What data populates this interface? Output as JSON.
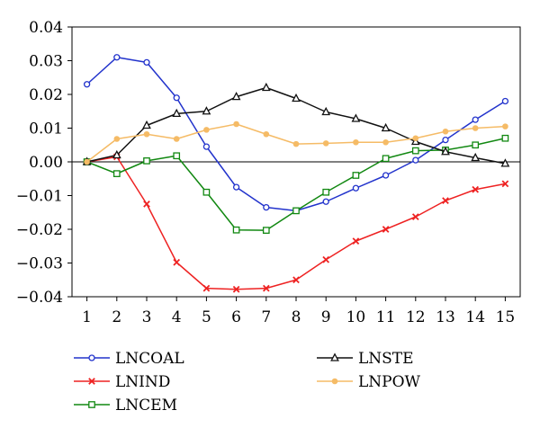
{
  "chart_data": {
    "type": "line",
    "title": "",
    "xlabel": "",
    "ylabel": "",
    "x": [
      1,
      2,
      3,
      4,
      5,
      6,
      7,
      8,
      9,
      10,
      11,
      12,
      13,
      14,
      15
    ],
    "xlim": [
      0.5,
      15.5
    ],
    "ylim": [
      -0.04,
      0.04
    ],
    "yticks": [
      "0.04",
      "0.03",
      "0.02",
      "0.01",
      "0.00",
      "−0.01",
      "−0.02",
      "−0.03",
      "−0.04"
    ],
    "ytick_values": [
      0.04,
      0.03,
      0.02,
      0.01,
      0.0,
      -0.01,
      -0.02,
      -0.03,
      -0.04
    ],
    "xticks": [
      "1",
      "2",
      "3",
      "4",
      "5",
      "6",
      "7",
      "8",
      "9",
      "10",
      "11",
      "12",
      "13",
      "14",
      "15"
    ],
    "zero_line": true,
    "grid": false,
    "legend_placement": "bottom",
    "series": [
      {
        "name": "LNCOAL",
        "color": "#2233cc",
        "marker": "circle",
        "values": [
          0.023,
          0.031,
          0.0295,
          0.019,
          0.0045,
          -0.0075,
          -0.0135,
          -0.0145,
          -0.0118,
          -0.0078,
          -0.004,
          0.0005,
          0.0065,
          0.0125,
          0.018
        ]
      },
      {
        "name": "LNIND",
        "color": "#ee2222",
        "marker": "x",
        "values": [
          0.0,
          0.0015,
          -0.0125,
          -0.0298,
          -0.0375,
          -0.0378,
          -0.0375,
          -0.035,
          -0.029,
          -0.0235,
          -0.02,
          -0.0163,
          -0.0115,
          -0.0082,
          -0.0065
        ]
      },
      {
        "name": "LNCEM",
        "color": "#118811",
        "marker": "square",
        "values": [
          0.0,
          -0.0035,
          0.0003,
          0.0018,
          -0.009,
          -0.0202,
          -0.0203,
          -0.0145,
          -0.009,
          -0.004,
          0.001,
          0.0033,
          0.0035,
          0.005,
          0.007
        ]
      },
      {
        "name": "LNSTE",
        "color": "#111111",
        "marker": "triangle",
        "values": [
          0.0,
          0.002,
          0.0108,
          0.0143,
          0.015,
          0.0193,
          0.022,
          0.0188,
          0.0148,
          0.0128,
          0.01,
          0.006,
          0.003,
          0.0012,
          -0.0005
        ]
      },
      {
        "name": "LNPOW",
        "color": "#f5bb66",
        "marker": "dot",
        "values": [
          0.0,
          0.0068,
          0.0082,
          0.0068,
          0.0095,
          0.0112,
          0.0082,
          0.0053,
          0.0055,
          0.0058,
          0.0058,
          0.007,
          0.009,
          0.01,
          0.0105
        ]
      }
    ],
    "legend": {
      "columns": [
        [
          "LNCOAL",
          "LNIND",
          "LNCEM"
        ],
        [
          "LNSTE",
          "LNPOW"
        ]
      ]
    }
  }
}
